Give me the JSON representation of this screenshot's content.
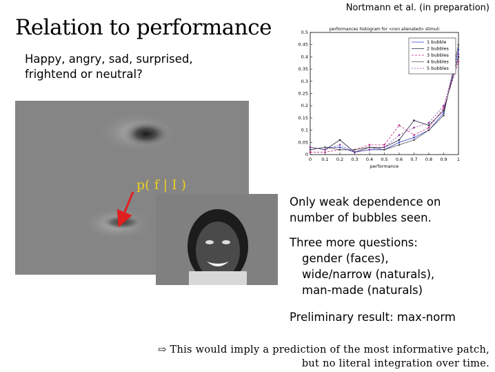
{
  "citation": "Nortmann et al. (in preparation)",
  "title": "Relation to performance",
  "question": {
    "line1": "Happy, angry, sad, surprised,",
    "line2": "frightend or neutral?"
  },
  "figure_label": "p( f | I )",
  "colors": {
    "arrow": "#e02020",
    "label": "#f0d020",
    "panel_bg": "#858585"
  },
  "observations": {
    "weak_line1": "Only weak dependence on",
    "weak_line2": "number of bubbles seen.",
    "three_header": "Three more questions:",
    "three_items": [
      "gender (faces),",
      "wide/narrow (naturals),",
      "man-made (naturals)"
    ],
    "preliminary": "Preliminary result: max-norm"
  },
  "footnote": {
    "arrow": "⇨",
    "line1": "This would imply a prediction of the most informative patch,",
    "line2": "but no literal integration over time."
  },
  "chart_data": {
    "type": "line",
    "title": "performances histogram for <non alienated> stimuli",
    "xlabel": "performance",
    "ylabel": "",
    "xlim": [
      0,
      1
    ],
    "ylim": [
      0,
      0.5
    ],
    "xticks": [
      "0",
      "0.1",
      "0.2",
      "0.3",
      "0.4",
      "0.5",
      "0.6",
      "0.7",
      "0.8",
      "0.9",
      "1"
    ],
    "yticks": [
      "0",
      "0.05",
      "0.1",
      "0.15",
      "0.2",
      "0.25",
      "0.3",
      "0.35",
      "0.4",
      "0.45",
      "0.5"
    ],
    "legend_position": "top-right",
    "x": [
      0,
      0.1,
      0.2,
      0.3,
      0.4,
      0.5,
      0.6,
      0.7,
      0.8,
      0.9,
      1.0
    ],
    "series": [
      {
        "name": "1 bubble",
        "values": [
          0.02,
          0.03,
          0.03,
          0.01,
          0.02,
          0.02,
          0.05,
          0.07,
          0.1,
          0.17,
          0.43
        ],
        "color": "#3040c0",
        "dash": ""
      },
      {
        "name": "2 bubbles",
        "values": [
          0.03,
          0.02,
          0.06,
          0.01,
          0.03,
          0.03,
          0.06,
          0.14,
          0.12,
          0.18,
          0.4
        ],
        "color": "#202040",
        "dash": ""
      },
      {
        "name": "3 bubbles",
        "values": [
          0.01,
          0.01,
          0.02,
          0.02,
          0.04,
          0.04,
          0.12,
          0.08,
          0.11,
          0.19,
          0.38
        ],
        "color": "#c02080",
        "dash": "3,2"
      },
      {
        "name": "4 bubbles",
        "values": [
          0.02,
          0.03,
          0.02,
          0.02,
          0.03,
          0.02,
          0.04,
          0.06,
          0.1,
          0.16,
          0.45
        ],
        "color": "#505050",
        "dash": ""
      },
      {
        "name": "5 bubbles",
        "values": [
          0.03,
          0.02,
          0.04,
          0.01,
          0.02,
          0.03,
          0.08,
          0.11,
          0.13,
          0.2,
          0.41
        ],
        "color": "#8030a0",
        "dash": "2,2"
      }
    ]
  }
}
